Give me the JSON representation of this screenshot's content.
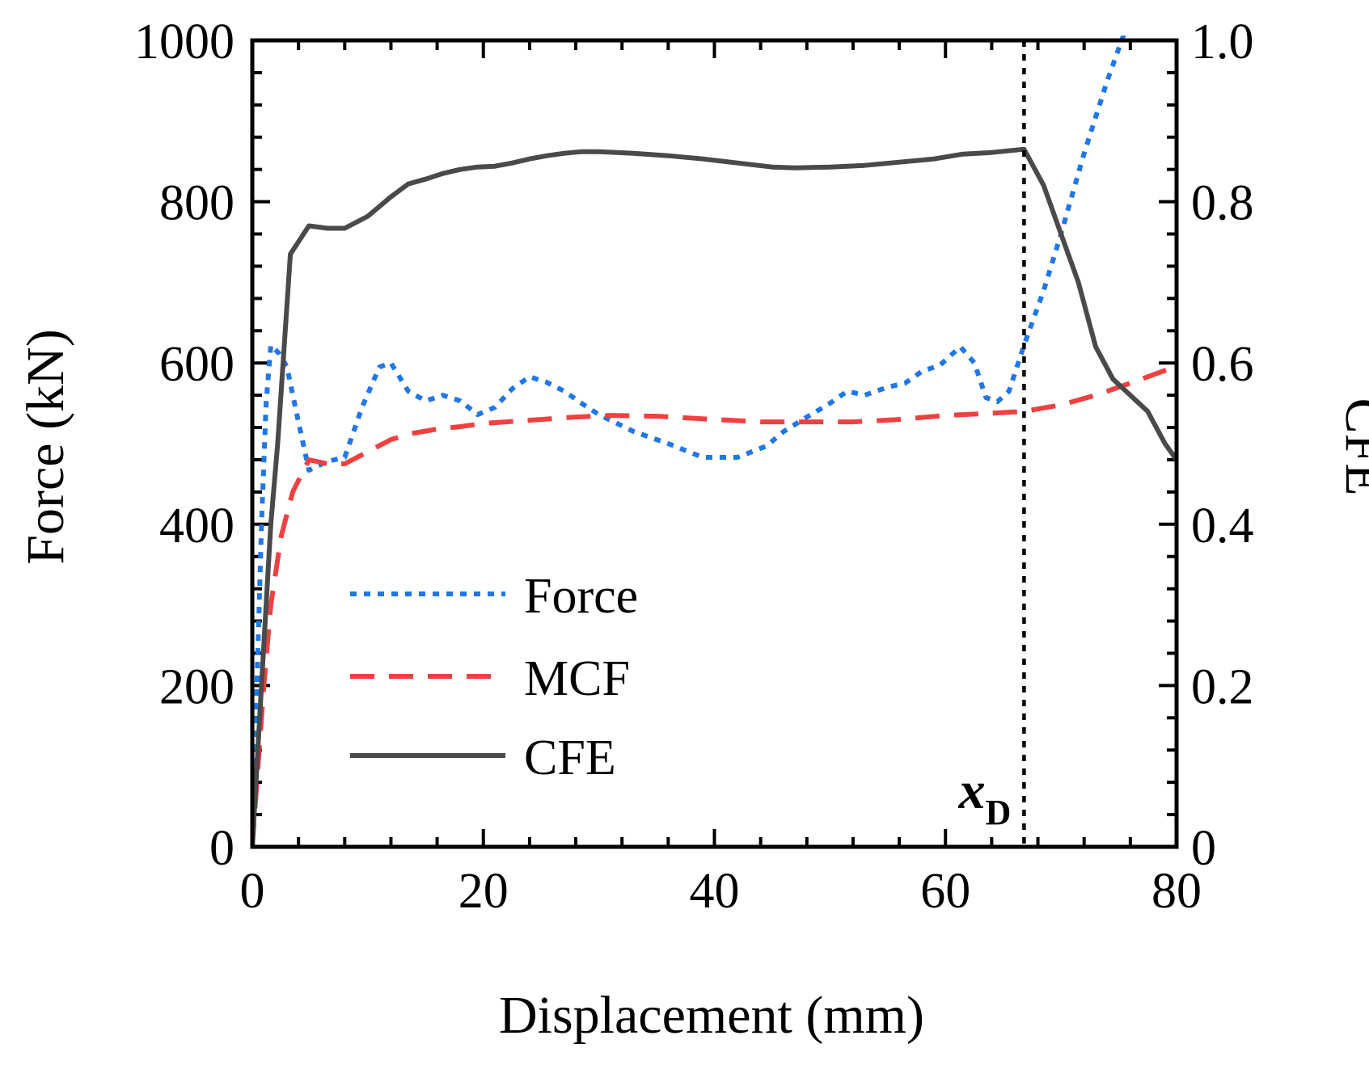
{
  "chart_data": {
    "type": "line",
    "xlabel": "Displacement (mm)",
    "ylabel": "Force (kN)",
    "y2label": "CFE",
    "xlim": [
      0,
      80
    ],
    "ylim": [
      0,
      1000
    ],
    "y2lim": [
      0,
      1.0
    ],
    "xticks": [
      "0",
      "20",
      "40",
      "60",
      "80"
    ],
    "yticks": [
      "0",
      "200",
      "400",
      "600",
      "800",
      "1000"
    ],
    "y2ticks": [
      "0",
      "0.2",
      "0.4",
      "0.6",
      "0.8",
      "1.0"
    ],
    "legend_position": "lower-left",
    "annotation": {
      "label": "x",
      "subscript": "D",
      "x": 66.8
    },
    "series": [
      {
        "name": "Force",
        "axis": "left",
        "style": "dotted",
        "color": "#1f77e8",
        "x": [
          0,
          0.4,
          0.8,
          1.2,
          1.6,
          2.3,
          3.0,
          3.8,
          4.9,
          6.5,
          8.0,
          9.5,
          11.0,
          12.0,
          13.5,
          15.0,
          16.5,
          18.0,
          19.5,
          21.0,
          22.5,
          24.0,
          25.5,
          27.0,
          28.5,
          30.0,
          33.0,
          36.0,
          39.0,
          42.0,
          44.5,
          46.0,
          48.0,
          50.0,
          51.5,
          53.0,
          55.0,
          56.5,
          58.0,
          59.5,
          60.5,
          61.3,
          62.5,
          63.5,
          64.5,
          65.5,
          66.8,
          68.5,
          70.0,
          72.0,
          74.0,
          75.5
        ],
        "values": [
          0,
          200,
          400,
          550,
          622,
          612,
          595,
          540,
          467,
          478,
          483,
          545,
          595,
          600,
          565,
          553,
          560,
          553,
          536,
          545,
          568,
          583,
          576,
          565,
          550,
          536,
          515,
          500,
          483,
          483,
          497,
          515,
          533,
          550,
          565,
          560,
          570,
          575,
          590,
          597,
          610,
          620,
          600,
          557,
          552,
          565,
          622,
          690,
          760,
          860,
          950,
          1010
        ]
      },
      {
        "name": "MCF",
        "axis": "left",
        "style": "dashed",
        "color": "#f04040",
        "x": [
          0,
          0.5,
          1.0,
          1.6,
          2.5,
          3.5,
          4.9,
          6.5,
          8.0,
          10.0,
          12.0,
          14.0,
          16.0,
          18.0,
          20.0,
          22.0,
          25.0,
          28.0,
          31.0,
          35.0,
          40.0,
          44.0,
          48.0,
          52.0,
          56.0,
          60.0,
          63.0,
          66.8,
          70.0,
          73.0,
          76.0,
          80.0
        ],
        "values": [
          0,
          100,
          200,
          300,
          385,
          440,
          480,
          475,
          475,
          490,
          505,
          513,
          518,
          521,
          525,
          527,
          530,
          533,
          535,
          534,
          530,
          527,
          527,
          527,
          530,
          535,
          537,
          540,
          548,
          560,
          575,
          596
        ]
      },
      {
        "name": "CFE",
        "axis": "right",
        "style": "solid",
        "color": "#4a4a4a",
        "x": [
          0,
          0.4,
          0.8,
          1.2,
          1.6,
          2.2,
          3.3,
          4.9,
          6.5,
          8.0,
          10.0,
          12.0,
          13.5,
          15.0,
          16.5,
          18.0,
          19.5,
          21.0,
          22.5,
          24.0,
          25.5,
          27.0,
          28.5,
          30.0,
          33.0,
          36.0,
          39.0,
          42.0,
          45.0,
          47.0,
          50.0,
          53.0,
          56.0,
          59.0,
          61.5,
          64.0,
          66.8,
          68.5,
          70.0,
          71.5,
          73.0,
          74.5,
          76.0,
          77.5,
          79.0,
          80.0
        ],
        "values": [
          0,
          0.1,
          0.2,
          0.3,
          0.4,
          0.5,
          0.735,
          0.77,
          0.767,
          0.767,
          0.782,
          0.806,
          0.822,
          0.828,
          0.835,
          0.84,
          0.843,
          0.844,
          0.848,
          0.853,
          0.857,
          0.86,
          0.862,
          0.862,
          0.86,
          0.857,
          0.853,
          0.848,
          0.843,
          0.842,
          0.843,
          0.845,
          0.849,
          0.853,
          0.859,
          0.861,
          0.865,
          0.82,
          0.76,
          0.7,
          0.62,
          0.58,
          0.56,
          0.54,
          0.5,
          0.48
        ]
      }
    ]
  }
}
